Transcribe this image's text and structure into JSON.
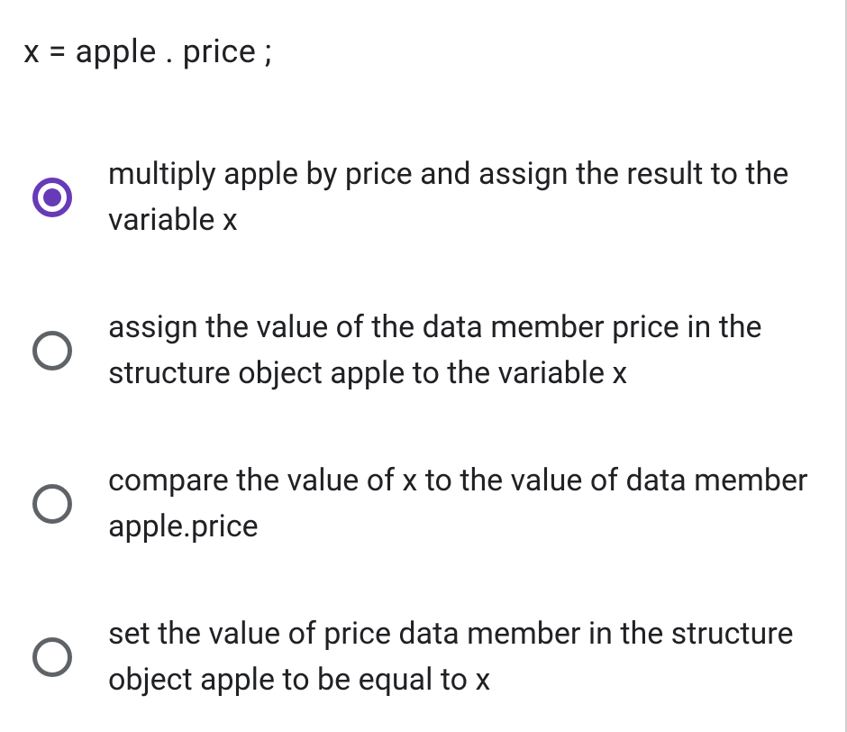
{
  "question": {
    "text": "x = apple . price ;"
  },
  "options": [
    {
      "label": "multiply apple by price and assign the result to the variable x",
      "selected": true
    },
    {
      "label": "assign the value of the data member price in the structure object apple to the variable x",
      "selected": false
    },
    {
      "label": "compare the value of x to the value of data member apple.price",
      "selected": false
    },
    {
      "label": "set the value of price data member in the structure object apple to be equal to x",
      "selected": false
    }
  ],
  "colors": {
    "selected_radio": "#673ab7",
    "unselected_radio": "#5f6368",
    "text": "#202124",
    "background": "#ffffff"
  }
}
